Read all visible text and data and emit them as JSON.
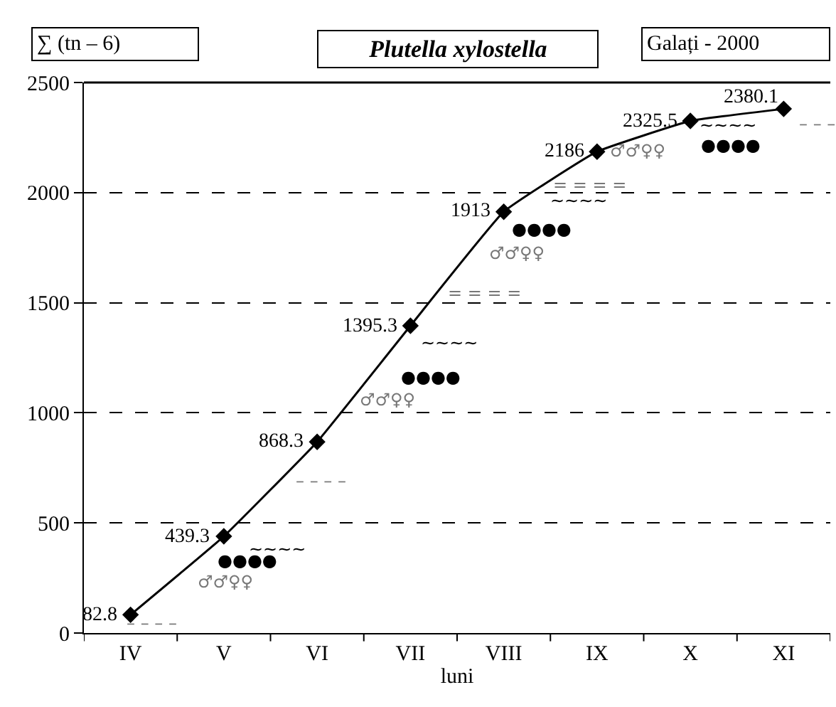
{
  "chart_data": {
    "type": "line",
    "title": "Plutella xylostella",
    "subtitle": "Galați - 2000",
    "ylabel": "∑ (tn – 6)",
    "xlabel": "luni",
    "categories": [
      "IV",
      "V",
      "VI",
      "VII",
      "VIII",
      "IX",
      "X",
      "XI"
    ],
    "series": [
      {
        "color": "#000000",
        "values": [
          82.8,
          439.3,
          868.3,
          1395.3,
          1913,
          2186,
          2325.5,
          2380.1
        ]
      }
    ],
    "data_labels": true,
    "marker": "diamond",
    "line_style": "solid",
    "grid": "y",
    "ylim": [
      0,
      2500
    ],
    "yticks": [
      0,
      500,
      1000,
      1500,
      2000,
      2500
    ],
    "annotations": [
      "– – – –",
      "♂♂♀♀",
      "●●●●",
      "~~~~",
      "– – – –",
      "♂♂♀♀",
      "●●●●",
      "~~~~",
      "= = = =",
      "♂♂♀♀",
      "●●●●",
      "~~~~",
      "= = = =",
      "♂♂♀♀",
      "●●●●",
      "~~~~",
      "– – –"
    ]
  }
}
